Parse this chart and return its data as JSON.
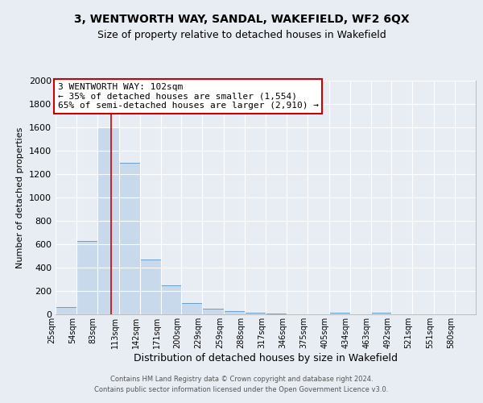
{
  "title": "3, WENTWORTH WAY, SANDAL, WAKEFIELD, WF2 6QX",
  "subtitle": "Size of property relative to detached houses in Wakefield",
  "xlabel": "Distribution of detached houses by size in Wakefield",
  "ylabel": "Number of detached properties",
  "bar_color": "#c8d9ec",
  "bar_edge_color": "#6b9ec8",
  "background_color": "#e8edf4",
  "grid_color": "#ffffff",
  "annotation_box_color": "#ffffff",
  "annotation_border_color": "#cc0000",
  "vline_color": "#cc0000",
  "vline_x": 102,
  "annotation_title": "3 WENTWORTH WAY: 102sqm",
  "annotation_line1": "← 35% of detached houses are smaller (1,554)",
  "annotation_line2": "65% of semi-detached houses are larger (2,910) →",
  "footer1": "Contains HM Land Registry data © Crown copyright and database right 2024.",
  "footer2": "Contains public sector information licensed under the Open Government Licence v3.0.",
  "bins": [
    25,
    54,
    83,
    113,
    142,
    171,
    200,
    229,
    259,
    288,
    317,
    346,
    375,
    405,
    434,
    463,
    492,
    521,
    551,
    580,
    609
  ],
  "counts": [
    65,
    630,
    1600,
    1300,
    470,
    250,
    100,
    50,
    25,
    15,
    10,
    0,
    0,
    15,
    0,
    15,
    0,
    0,
    0,
    0
  ],
  "ylim": [
    0,
    2000
  ],
  "yticks": [
    0,
    200,
    400,
    600,
    800,
    1000,
    1200,
    1400,
    1600,
    1800,
    2000
  ],
  "title_fontsize": 10,
  "subtitle_fontsize": 9,
  "xlabel_fontsize": 9,
  "ylabel_fontsize": 8,
  "xtick_fontsize": 7,
  "ytick_fontsize": 8,
  "footer_fontsize": 6,
  "ann_fontsize": 8
}
